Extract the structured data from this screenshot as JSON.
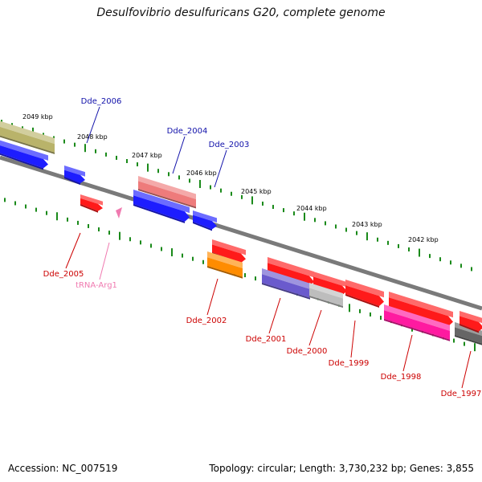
{
  "title": "Desulfovibrio desulfuricans G20, complete genome",
  "footer": {
    "accession": "Accession: NC_007519",
    "topology": "Topology: circular; Length: 3,730,232 bp; Genes: 3,855"
  },
  "scale_labels": [
    "2049 kbp",
    "2048 kbp",
    "2047 kbp",
    "2046 kbp",
    "2045 kbp",
    "2044 kbp",
    "2043 kbp",
    "2042 kbp"
  ],
  "colors": {
    "backbone": "#7a7a7a",
    "tick": "#1a8a1a",
    "label_forward": "#1111aa",
    "label_reverse": "#cc0000",
    "label_trna": "#f07ab0"
  },
  "forward_genes": [
    {
      "name": "",
      "color": "#b9b36a"
    },
    {
      "name": "",
      "color": "#1d1dff"
    },
    {
      "name": "Dde_2006",
      "color": "#1d1dff"
    },
    {
      "name": "Dde_2004",
      "color": "#ee7b7b"
    },
    {
      "name": "",
      "color": "#1d1dff"
    },
    {
      "name": "Dde_2003",
      "color": "#1d1dff"
    }
  ],
  "reverse_genes": [
    {
      "name": "Dde_2005",
      "color": "#ff1a1a"
    },
    {
      "name": "tRNA-Arg1",
      "color": "#f07ab0"
    },
    {
      "name": "",
      "color": "#ff1a1a"
    },
    {
      "name": "Dde_2002",
      "color": "#ff8c00"
    },
    {
      "name": "",
      "color": "#ff1a1a"
    },
    {
      "name": "Dde_2001",
      "color": "#6a5acd"
    },
    {
      "name": "",
      "color": "#ff1a1a"
    },
    {
      "name": "Dde_2000",
      "color": "#bdbdbd"
    },
    {
      "name": "Dde_1999",
      "color": "#ff1a1a"
    },
    {
      "name": "",
      "color": "#ff1a1a"
    },
    {
      "name": "Dde_1998",
      "color": "#ff1aa0"
    },
    {
      "name": "",
      "color": "#666666"
    },
    {
      "name": "Dde_1997",
      "color": "#ff1a1a"
    }
  ]
}
